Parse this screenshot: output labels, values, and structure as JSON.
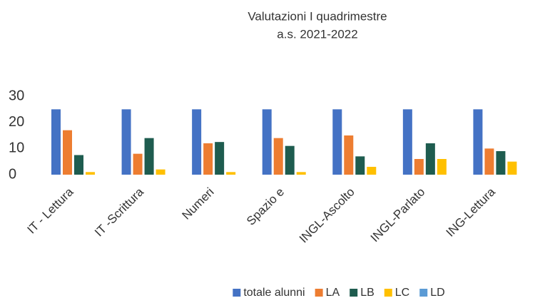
{
  "chart_data": {
    "type": "bar",
    "title": [
      "Valutazioni I quadrimestre",
      "a.s. 2021-2022"
    ],
    "categories": [
      "IT - Lettura",
      "IT -Scrittura",
      "Numeri",
      "Spazio e",
      "INGL-Ascolto",
      "INGL-Parlato",
      "ING-Lettura"
    ],
    "series": [
      {
        "name": "totale alunni",
        "color": "#4472c4",
        "values": [
          25,
          25,
          25,
          25,
          25,
          25,
          25
        ]
      },
      {
        "name": "LA",
        "color": "#ed7d31",
        "values": [
          17,
          8,
          12,
          14,
          15,
          6,
          10
        ]
      },
      {
        "name": "LB",
        "color": "#1e5c4f",
        "values": [
          7.5,
          14,
          12.5,
          11,
          7,
          12,
          9
        ]
      },
      {
        "name": "LC",
        "color": "#ffc000",
        "values": [
          1,
          2,
          1,
          1,
          3,
          6,
          5
        ]
      },
      {
        "name": "LD",
        "color": "#5b9bd5",
        "values": [
          0,
          0,
          0,
          0,
          0,
          0,
          0
        ]
      }
    ],
    "ylim": [
      0,
      30
    ],
    "yticks": [
      0,
      10,
      20,
      30
    ],
    "grid": false,
    "legend": "bottom"
  }
}
